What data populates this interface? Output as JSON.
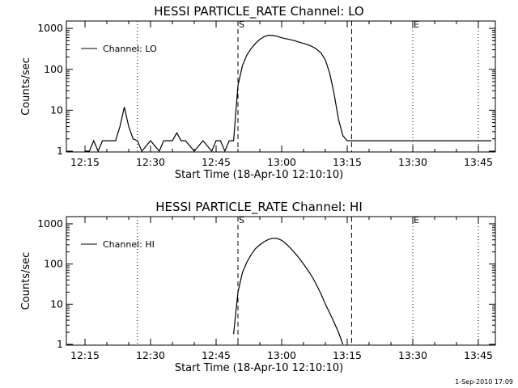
{
  "footer_timestamp": "1-Sep-2010 17:09",
  "chart_data": [
    {
      "type": "line",
      "title": "HESSI PARTICLE_RATE Channel: LO",
      "xlabel": "Start Time (18-Apr-10 12:10:10)",
      "ylabel": "Counts/sec",
      "yscale": "log",
      "ylim": [
        1,
        1000
      ],
      "y_tick_labels": [
        "1",
        "10",
        "100",
        "1000"
      ],
      "xlim": [
        "12:10",
        "13:49"
      ],
      "x_tick_labels": [
        "12:15",
        "12:30",
        "12:45",
        "13:00",
        "13:15",
        "13:30",
        "13:45"
      ],
      "legend": {
        "position": "top-left",
        "entries": [
          "Channel: LO"
        ]
      },
      "event_markers": [
        {
          "time": "12:50",
          "label": "S",
          "style": "dashed"
        },
        {
          "time": "13:16",
          "label": "",
          "style": "dashed"
        },
        {
          "time": "13:30",
          "label": "E",
          "style": "dotted"
        },
        {
          "time": "12:27",
          "label": "",
          "style": "dotted"
        },
        {
          "time": "13:45",
          "label": "",
          "style": "dotted"
        }
      ],
      "series": [
        {
          "x": [
            "12:15",
            "12:16",
            "12:17",
            "12:18",
            "12:19",
            "12:20",
            "12:21",
            "12:22",
            "12:23",
            "12:24",
            "12:25",
            "12:26",
            "12:27",
            "12:28",
            "12:30",
            "12:32",
            "12:33",
            "12:35",
            "12:36",
            "12:37",
            "12:38",
            "12:40",
            "12:42",
            "12:44",
            "12:45",
            "12:46",
            "12:47",
            "12:48",
            "12:49",
            "12:50",
            "12:51",
            "12:52",
            "12:53",
            "12:54",
            "12:55",
            "12:56",
            "12:57",
            "12:58",
            "12:59",
            "13:00",
            "13:01",
            "13:02",
            "13:03",
            "13:04",
            "13:05",
            "13:06",
            "13:07",
            "13:08",
            "13:09",
            "13:10",
            "13:11",
            "13:12",
            "13:13",
            "13:14",
            "13:15",
            "13:16",
            "13:17",
            "13:20",
            "13:23",
            "13:26",
            "13:30",
            "13:33",
            "13:36",
            "13:39",
            "13:42",
            "13:45",
            "13:48"
          ],
          "values": [
            1,
            1,
            1.8,
            1,
            1.8,
            1.8,
            1.8,
            1.8,
            4,
            12,
            4,
            2,
            1.8,
            1,
            1.8,
            1,
            1.8,
            1.8,
            2.8,
            1.8,
            1.8,
            1,
            1.8,
            1,
            1.8,
            1.8,
            1,
            1.8,
            1.8,
            40,
            120,
            220,
            320,
            430,
            540,
            630,
            680,
            670,
            640,
            590,
            560,
            530,
            500,
            460,
            430,
            400,
            360,
            310,
            250,
            170,
            80,
            25,
            6,
            2.4,
            1.8,
            1.8,
            1.8,
            1.8,
            1.8,
            1.8,
            1.8,
            1.8,
            1.8,
            1.8,
            1.8,
            1.8,
            1.8
          ]
        }
      ]
    },
    {
      "type": "line",
      "title": "HESSI PARTICLE_RATE Channel: HI",
      "xlabel": "Start Time (18-Apr-10 12:10:10)",
      "ylabel": "Counts/sec",
      "yscale": "log",
      "ylim": [
        1,
        1000
      ],
      "y_tick_labels": [
        "1",
        "10",
        "100",
        "1000"
      ],
      "xlim": [
        "12:10",
        "13:49"
      ],
      "x_tick_labels": [
        "12:15",
        "12:30",
        "12:45",
        "13:00",
        "13:15",
        "13:30",
        "13:45"
      ],
      "legend": {
        "position": "top-left",
        "entries": [
          "Channel: HI"
        ]
      },
      "event_markers": [
        {
          "time": "12:50",
          "label": "S",
          "style": "dashed"
        },
        {
          "time": "13:16",
          "label": "",
          "style": "dashed"
        },
        {
          "time": "13:30",
          "label": "E",
          "style": "dotted"
        },
        {
          "time": "12:27",
          "label": "",
          "style": "dotted"
        },
        {
          "time": "13:45",
          "label": "",
          "style": "dotted"
        }
      ],
      "series": [
        {
          "x": [
            "12:49",
            "12:50",
            "12:51",
            "12:52",
            "12:53",
            "12:54",
            "12:55",
            "12:56",
            "12:57",
            "12:58",
            "12:59",
            "13:00",
            "13:01",
            "13:02",
            "13:03",
            "13:04",
            "13:05",
            "13:06",
            "13:07",
            "13:08",
            "13:09",
            "13:10",
            "13:11",
            "13:12",
            "13:13",
            "13:14"
          ],
          "values": [
            1.8,
            20,
            60,
            110,
            170,
            240,
            300,
            360,
            410,
            440,
            430,
            390,
            320,
            250,
            190,
            140,
            100,
            70,
            48,
            30,
            18,
            10,
            6,
            3.5,
            2,
            1
          ]
        }
      ]
    }
  ]
}
